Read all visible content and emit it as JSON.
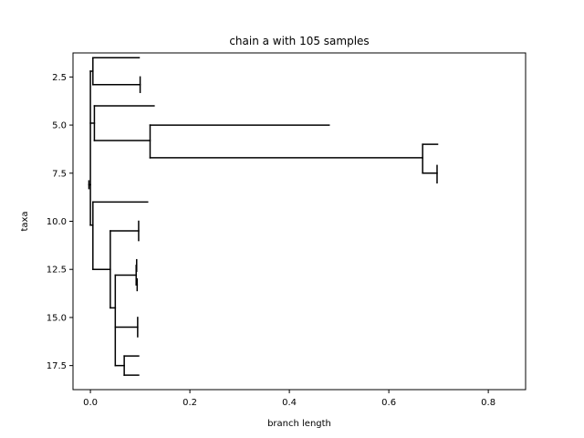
{
  "chart_data": {
    "type": "dendrogram",
    "title": "chain a with 105 samples",
    "xlabel": "branch length",
    "ylabel": "taxa",
    "xlim": [
      -0.035,
      0.875
    ],
    "ylim": [
      18.75,
      1.25
    ],
    "y_inverted": true,
    "grid": false,
    "legend": "none",
    "line_color": "#000000",
    "x_ticks": [
      {
        "value": 0.0,
        "label": "0.0"
      },
      {
        "value": 0.2,
        "label": "0.2"
      },
      {
        "value": 0.4,
        "label": "0.4"
      },
      {
        "value": 0.6,
        "label": "0.6"
      },
      {
        "value": 0.8,
        "label": "0.8"
      }
    ],
    "y_ticks": [
      {
        "value": 2.5,
        "label": "2.5"
      },
      {
        "value": 5.0,
        "label": "5.0"
      },
      {
        "value": 7.5,
        "label": "7.5"
      },
      {
        "value": 10.0,
        "label": "10.0"
      },
      {
        "value": 12.5,
        "label": "12.5"
      },
      {
        "value": 15.0,
        "label": "15.0"
      },
      {
        "value": 17.5,
        "label": "17.5"
      }
    ],
    "horizontal_branches": [
      {
        "y": 8.1,
        "x0": -0.003,
        "x1": 0.0
      },
      {
        "y": 2.2,
        "x0": 0.0,
        "x1": 0.005
      },
      {
        "y": 1.5,
        "x0": 0.005,
        "x1": 0.098
      },
      {
        "y": 2.9,
        "x0": 0.005,
        "x1": 0.1
      },
      {
        "y": 4.9,
        "x0": 0.0,
        "x1": 0.008
      },
      {
        "y": 4.0,
        "x0": 0.008,
        "x1": 0.128
      },
      {
        "y": 5.8,
        "x0": 0.008,
        "x1": 0.12
      },
      {
        "y": 5.0,
        "x0": 0.12,
        "x1": 0.48
      },
      {
        "y": 6.7,
        "x0": 0.12,
        "x1": 0.668
      },
      {
        "y": 6.0,
        "x0": 0.668,
        "x1": 0.698
      },
      {
        "y": 7.5,
        "x0": 0.668,
        "x1": 0.697
      },
      {
        "y": 10.2,
        "x0": 0.0,
        "x1": 0.005
      },
      {
        "y": 9.0,
        "x0": 0.005,
        "x1": 0.115
      },
      {
        "y": 12.5,
        "x0": 0.005,
        "x1": 0.04
      },
      {
        "y": 10.5,
        "x0": 0.04,
        "x1": 0.097
      },
      {
        "y": 14.5,
        "x0": 0.04,
        "x1": 0.05
      },
      {
        "y": 12.8,
        "x0": 0.05,
        "x1": 0.092
      },
      {
        "y": 12.3,
        "x0": 0.092,
        "x1": 0.093
      },
      {
        "y": 13.3,
        "x0": 0.092,
        "x1": 0.094
      },
      {
        "y": 15.5,
        "x0": 0.05,
        "x1": 0.095
      },
      {
        "y": 17.5,
        "x0": 0.05,
        "x1": 0.068
      },
      {
        "y": 17.0,
        "x0": 0.068,
        "x1": 0.097
      },
      {
        "y": 18.0,
        "x0": 0.068,
        "x1": 0.097
      }
    ],
    "vertical_branches": [
      {
        "x": -0.003,
        "y0": 7.9,
        "y1": 8.3
      },
      {
        "x": 0.0,
        "y0": 2.2,
        "y1": 10.2
      },
      {
        "x": 0.005,
        "y0": 1.5,
        "y1": 2.9
      },
      {
        "x": 0.1,
        "y0": 2.5,
        "y1": 3.3
      },
      {
        "x": 0.008,
        "y0": 4.0,
        "y1": 5.8
      },
      {
        "x": 0.12,
        "y0": 5.0,
        "y1": 6.7
      },
      {
        "x": 0.668,
        "y0": 6.0,
        "y1": 7.5
      },
      {
        "x": 0.697,
        "y0": 7.1,
        "y1": 8.0
      },
      {
        "x": 0.005,
        "y0": 9.0,
        "y1": 12.5
      },
      {
        "x": 0.04,
        "y0": 10.5,
        "y1": 14.5
      },
      {
        "x": 0.097,
        "y0": 10.0,
        "y1": 11.0
      },
      {
        "x": 0.05,
        "y0": 12.8,
        "y1": 17.5
      },
      {
        "x": 0.092,
        "y0": 12.3,
        "y1": 13.3
      },
      {
        "x": 0.093,
        "y0": 12.0,
        "y1": 12.6
      },
      {
        "x": 0.094,
        "y0": 13.0,
        "y1": 13.6
      },
      {
        "x": 0.095,
        "y0": 15.0,
        "y1": 16.0
      },
      {
        "x": 0.068,
        "y0": 17.0,
        "y1": 18.0
      }
    ]
  }
}
